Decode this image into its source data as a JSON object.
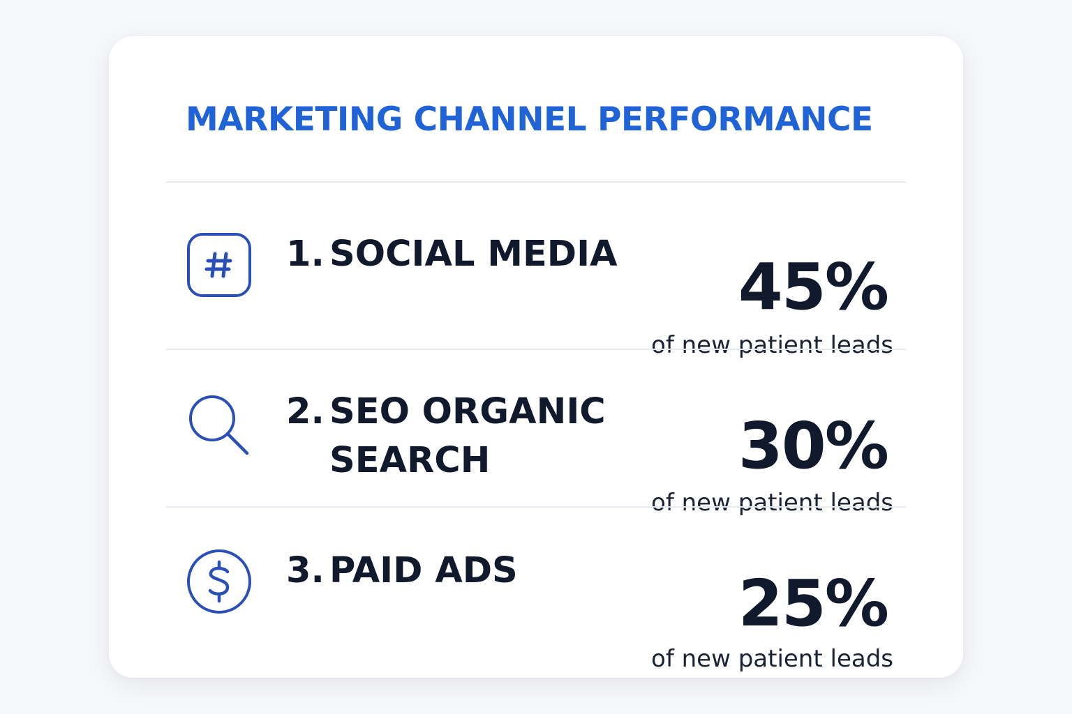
{
  "title": "MARKETING CHANNEL PERFORMANCE",
  "accent_color": "#1f63d6",
  "icon_color": "#2a4fb8",
  "channels": [
    {
      "number": "1.",
      "label_line1": "SOCIAL MEDIA",
      "label_line2": "",
      "icon": "hashtag-icon",
      "percent": "45%",
      "value": 45,
      "caption": "of new patient leads"
    },
    {
      "number": "2.",
      "label_line1": "SEO ORGANIC",
      "label_line2": "SEARCH",
      "icon": "search-icon",
      "percent": "30%",
      "value": 30,
      "caption": "of new patient leads"
    },
    {
      "number": "3.",
      "label_line1": "PAID ADS",
      "label_line2": "",
      "icon": "dollar-icon",
      "percent": "25%",
      "value": 25,
      "caption": "of new patient leads"
    }
  ]
}
